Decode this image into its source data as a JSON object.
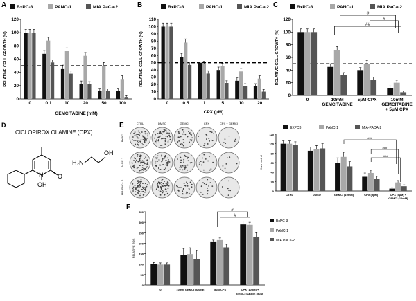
{
  "colors": {
    "bxpc3": "#111111",
    "panc1": "#a8a8a8",
    "mia": "#555555",
    "dashed": "#000000"
  },
  "panel_A": {
    "label": "A",
    "legend": [
      "BxPC-3",
      "PANC-1",
      "MIA PaCa-2"
    ],
    "chart_data": {
      "type": "bar",
      "xlabel": "GEMCITABINE  (mM)",
      "ylabel": "RELATIVE CELL GROWTH (%)",
      "categories": [
        "0",
        "0.1",
        "10",
        "20",
        "50",
        "100"
      ],
      "ylim": [
        0,
        120
      ],
      "yticks": [
        "0",
        "20",
        "40",
        "60",
        "80",
        "100",
        "120"
      ],
      "reference_line": 50,
      "series": [
        {
          "name": "BxPC-3",
          "values": [
            100,
            68,
            46,
            22,
            12,
            12
          ],
          "errors": [
            5,
            5,
            5,
            5,
            4,
            4
          ]
        },
        {
          "name": "PANC-1",
          "values": [
            100,
            88,
            72,
            65,
            50,
            30
          ],
          "errors": [
            5,
            5,
            5,
            5,
            5,
            5
          ]
        },
        {
          "name": "MIA PaCa-2",
          "values": [
            100,
            55,
            38,
            22,
            12,
            3
          ],
          "errors": [
            5,
            4,
            4,
            4,
            3,
            2
          ]
        }
      ]
    }
  },
  "panel_B": {
    "label": "B",
    "legend": [
      "BxPC-3",
      "PANC-1",
      "MIA PaCa-2"
    ],
    "chart_data": {
      "type": "bar",
      "xlabel": "CPX (μM)",
      "ylabel": "RELATIVE CELL GROWTH (%)",
      "categories": [
        "0",
        "0.5",
        "1",
        "5",
        "10",
        "20"
      ],
      "ylim": [
        0,
        110
      ],
      "yticks": [
        "0",
        "10",
        "20",
        "30",
        "40",
        "50",
        "60",
        "70",
        "80",
        "90",
        "100",
        "110"
      ],
      "reference_line": 50,
      "series": [
        {
          "name": "BxPC-3",
          "values": [
            100,
            58,
            50,
            40,
            25,
            18
          ],
          "errors": [
            5,
            5,
            4,
            4,
            4,
            3
          ]
        },
        {
          "name": "PANC-1",
          "values": [
            100,
            78,
            48,
            45,
            38,
            28
          ],
          "errors": [
            5,
            5,
            4,
            4,
            4,
            4
          ]
        },
        {
          "name": "MIA PaCa-2",
          "values": [
            100,
            47,
            35,
            22,
            18,
            10
          ],
          "errors": [
            5,
            4,
            4,
            3,
            3,
            3
          ]
        }
      ]
    }
  },
  "panel_C": {
    "label": "C",
    "legend": [
      "BxPC-3",
      "PANC-1",
      "MIA PaCa-2"
    ],
    "chart_data": {
      "type": "bar",
      "xlabel": "",
      "ylabel": "RELATIVE CELL GROWTH (%)",
      "categories": [
        "0",
        "10mM GEMCITABINE",
        "5μM CPX",
        "10mM GEMCITABINE + 5μM CPX"
      ],
      "ylim": [
        0,
        120
      ],
      "yticks": [
        "0",
        "20",
        "40",
        "60",
        "80",
        "100",
        "120"
      ],
      "reference_line": 50,
      "series": [
        {
          "name": "BxPC-3",
          "values": [
            100,
            45,
            40,
            12
          ],
          "errors": [
            5,
            5,
            4,
            3
          ]
        },
        {
          "name": "PANC-1",
          "values": [
            100,
            72,
            50,
            20
          ],
          "errors": [
            5,
            5,
            5,
            4
          ]
        },
        {
          "name": "MIA PaCa-2",
          "values": [
            100,
            32,
            25,
            5
          ],
          "errors": [
            5,
            4,
            4,
            2
          ]
        }
      ],
      "annotations": [
        "#",
        "#",
        "##"
      ]
    }
  },
  "panel_D": {
    "label": "D",
    "title": "CICLOPIROX OLAMINE (CPX)",
    "atoms": [
      "N",
      "OH",
      "O",
      "H₂N",
      "OH"
    ]
  },
  "panel_E": {
    "label": "E",
    "plate_columns": [
      "CTRL",
      "DMSO",
      "GEMCI",
      "CPX",
      "CPX + GEMCI"
    ],
    "plate_rows": [
      "BxPC3",
      "PANC-1",
      "MIA-PACA-2"
    ],
    "legend": [
      "BXPC3",
      "PANC-1",
      "MIA-PACA-2"
    ],
    "chart_data": {
      "type": "bar",
      "ylabel": "% vs control",
      "categories": [
        "CTRL",
        "DMSO",
        "GEMCI (10mM)",
        "CPX (5μM)",
        "CPX (5μM) GEMCI (10mM)"
      ],
      "ylim": [
        0,
        120
      ],
      "yticks": [
        "0",
        "20",
        "40",
        "60",
        "80",
        "100",
        "120"
      ],
      "series": [
        {
          "name": "BXPC3",
          "values": [
            100,
            85,
            60,
            30,
            5
          ],
          "errors": [
            6,
            8,
            10,
            8,
            2
          ]
        },
        {
          "name": "PANC-1",
          "values": [
            100,
            88,
            72,
            38,
            18
          ],
          "errors": [
            6,
            8,
            10,
            6,
            4
          ]
        },
        {
          "name": "MIA-PACA-2",
          "values": [
            98,
            90,
            52,
            25,
            10
          ],
          "errors": [
            6,
            10,
            10,
            6,
            3
          ]
        }
      ],
      "annotations": [
        "###",
        "###",
        "###"
      ]
    }
  },
  "panel_F": {
    "label": "F",
    "legend": [
      "BxPC-3",
      "PANC-1",
      "MIA PaCa-2"
    ],
    "chart_data": {
      "type": "bar",
      "ylabel": "RELATIVE ROS",
      "categories": [
        "0",
        "10mM GEMCITABINE",
        "5μM CPX",
        "CPX (10nM) + GEMCITABINE (5μM)"
      ],
      "ylim": [
        0,
        350
      ],
      "yticks": [
        "0",
        "50",
        "100",
        "150",
        "200",
        "250",
        "300",
        "350"
      ],
      "series": [
        {
          "name": "BxPC-3",
          "values": [
            100,
            145,
            205,
            290
          ],
          "errors": [
            8,
            30,
            10,
            15
          ]
        },
        {
          "name": "PANC-1",
          "values": [
            98,
            148,
            215,
            288
          ],
          "errors": [
            8,
            30,
            10,
            12
          ]
        },
        {
          "name": "MIA PaCa-2",
          "values": [
            98,
            125,
            180,
            230
          ],
          "errors": [
            8,
            40,
            15,
            20
          ]
        }
      ],
      "annotations": [
        "#",
        "#"
      ]
    }
  }
}
